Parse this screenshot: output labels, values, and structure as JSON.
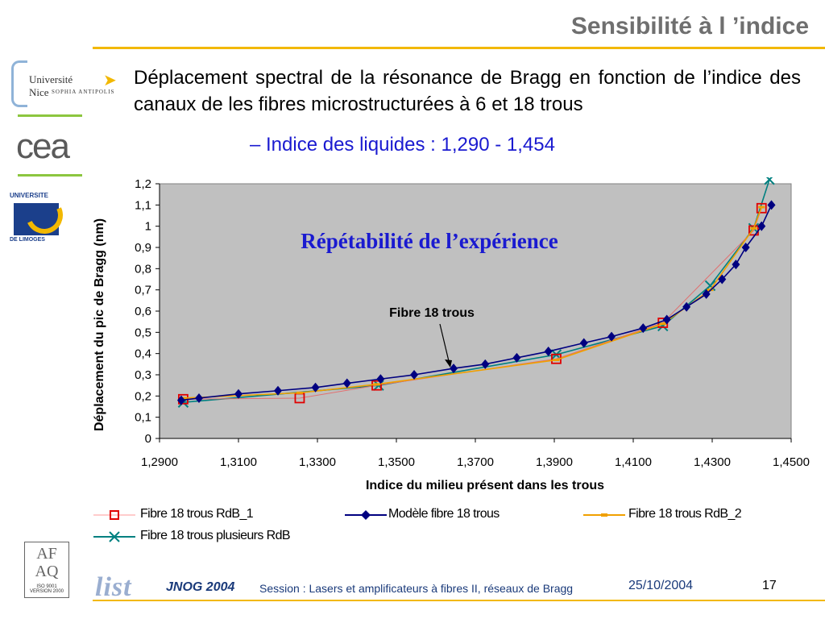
{
  "slide": {
    "title": "Sensibilité à l ’indice",
    "bullet": "Déplacement spectral de la résonance de Bragg en fonction de l’indice des canaux de les fibres microstructurées à 6 et 18 trous",
    "sub_bullet": "Indice des liquides : 1,290 - 1,454",
    "accent_color": "#f2b800",
    "sub_color": "#1a1ad0"
  },
  "logos": {
    "nice_line1": "Université",
    "nice_line2": "Nice",
    "nice_line3": "SOPHIA ANTIPOLIS",
    "cea": "cea",
    "limoges_top": "UNIVERSITE",
    "limoges_bottom": "DE LIMOGES",
    "afaq_letters": "AF AQ",
    "afaq_iso": "ISO 9001 VERSION 2000",
    "list": "list"
  },
  "footer": {
    "conference": "JNOG 2004",
    "session": "Session : Lasers et amplificateurs à fibres II, réseaux de Bragg",
    "date": "25/10/2004",
    "page": "17"
  },
  "chart_data": {
    "type": "scatter",
    "title": "Répétabilité de l’expérience",
    "annotation": "Fibre 18 trous",
    "xlabel": "Indice du milieu présent dans les trous",
    "ylabel": "Déplacement du pic de Bragg (nm)",
    "xlim": [
      1.29,
      1.45
    ],
    "ylim": [
      0,
      1.2
    ],
    "x_ticks": [
      "1,2900",
      "1,3100",
      "1,3300",
      "1,3500",
      "1,3700",
      "1,3900",
      "1,4100",
      "1,4300",
      "1,4500"
    ],
    "y_ticks": [
      "0",
      "0,1",
      "0,2",
      "0,3",
      "0,4",
      "0,5",
      "0,6",
      "0,7",
      "0,8",
      "0,9",
      "1",
      "1,1",
      "1,2"
    ],
    "plot_bg": "#c0c0c0",
    "grid": false,
    "legend_position": "bottom",
    "series": [
      {
        "name": "Fibre 18 trous RdB_1",
        "marker": "square",
        "color": "#e00000",
        "x": [
          1.296,
          1.3255,
          1.345,
          1.3905,
          1.4175,
          1.4405,
          1.4425
        ],
        "y": [
          0.185,
          0.19,
          0.25,
          0.375,
          0.545,
          0.98,
          1.085
        ]
      },
      {
        "name": "Modèle fibre 18 trous",
        "marker": "diamond",
        "color": "#000080",
        "x": [
          1.2955,
          1.3,
          1.31,
          1.32,
          1.3295,
          1.3375,
          1.346,
          1.3545,
          1.3645,
          1.3725,
          1.3805,
          1.3885,
          1.3975,
          1.4045,
          1.4125,
          1.4185,
          1.4235,
          1.4285,
          1.4325,
          1.436,
          1.4385,
          1.4425,
          1.445
        ],
        "y": [
          0.18,
          0.19,
          0.21,
          0.225,
          0.24,
          0.26,
          0.28,
          0.3,
          0.33,
          0.35,
          0.38,
          0.41,
          0.45,
          0.48,
          0.52,
          0.56,
          0.62,
          0.68,
          0.75,
          0.82,
          0.9,
          1.0,
          1.1
        ]
      },
      {
        "name": "Fibre 18 trous RdB_2",
        "marker": "dash",
        "color": "#f0a000",
        "x": [
          1.296,
          1.3255,
          1.345,
          1.3905,
          1.4175,
          1.4295,
          1.4405,
          1.4425
        ],
        "y": [
          0.19,
          0.215,
          0.255,
          0.37,
          0.54,
          0.7,
          0.99,
          1.09
        ]
      },
      {
        "name": "Fibre 18 trous plusieurs RdB",
        "marker": "x",
        "color": "#008080",
        "x": [
          1.296,
          1.3455,
          1.3905,
          1.4175,
          1.4295,
          1.4405,
          1.4445
        ],
        "y": [
          0.17,
          0.25,
          0.395,
          0.53,
          0.72,
          0.99,
          1.22
        ]
      }
    ]
  }
}
